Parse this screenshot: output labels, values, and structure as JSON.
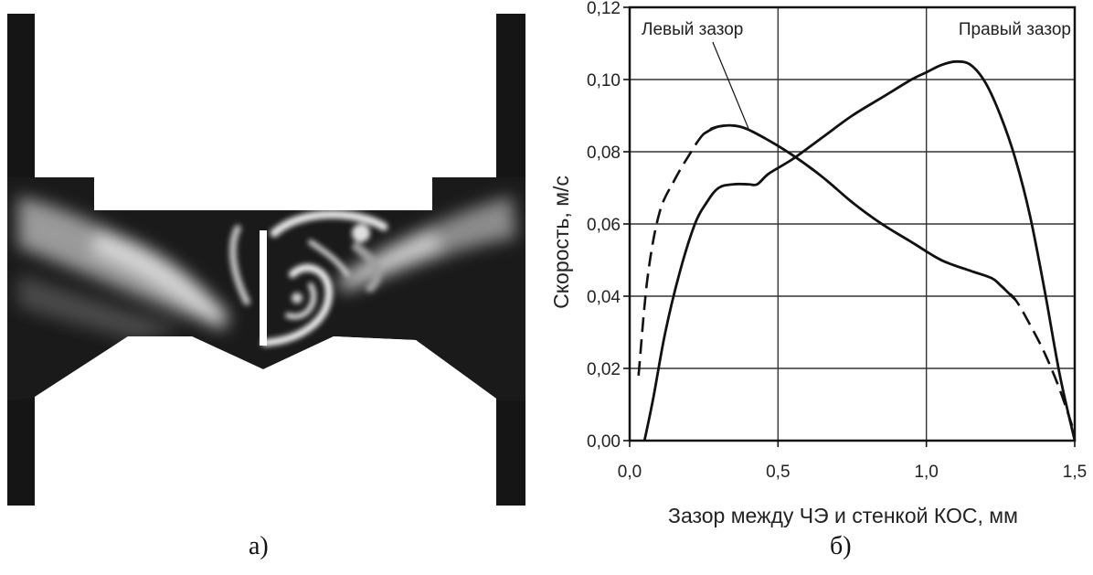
{
  "captions": {
    "left": "а)",
    "right": "б)"
  },
  "chart_data": {
    "type": "line",
    "xlabel": "Зазор между ЧЭ и стенкой КОС, мм",
    "ylabel": "Скорость, м/с",
    "xlim": [
      0.0,
      1.5
    ],
    "ylim": [
      0.0,
      0.12
    ],
    "xticks": [
      "0,0",
      "0,5",
      "1,0",
      "1,5"
    ],
    "yticks": [
      "0,00",
      "0,02",
      "0,04",
      "0,06",
      "0,08",
      "0,10",
      "0,12"
    ],
    "grid": true,
    "series": [
      {
        "name": "Левый зазор",
        "dashed_segment": "x < 0.37",
        "x": [
          0.03,
          0.06,
          0.1,
          0.15,
          0.2,
          0.25,
          0.3,
          0.37,
          0.45,
          0.55,
          0.65,
          0.75,
          0.85,
          0.95,
          1.05,
          1.15,
          1.22,
          1.25,
          1.3,
          1.35,
          1.4,
          1.45,
          1.5
        ],
        "y": [
          0.018,
          0.045,
          0.063,
          0.072,
          0.079,
          0.085,
          0.087,
          0.087,
          0.084,
          0.079,
          0.073,
          0.066,
          0.06,
          0.055,
          0.05,
          0.047,
          0.045,
          0.043,
          0.039,
          0.032,
          0.024,
          0.014,
          0.002
        ]
      },
      {
        "name": "Правый зазор",
        "dashed_segment": "none",
        "x": [
          0.05,
          0.08,
          0.12,
          0.17,
          0.22,
          0.26,
          0.3,
          0.35,
          0.4,
          0.43,
          0.47,
          0.55,
          0.65,
          0.75,
          0.85,
          0.95,
          1.0,
          1.05,
          1.1,
          1.15,
          1.2,
          1.25,
          1.3,
          1.35,
          1.4,
          1.45,
          1.5
        ],
        "y": [
          0.0,
          0.012,
          0.03,
          0.047,
          0.06,
          0.066,
          0.07,
          0.071,
          0.071,
          0.071,
          0.074,
          0.078,
          0.084,
          0.09,
          0.095,
          0.1,
          0.102,
          0.104,
          0.105,
          0.104,
          0.099,
          0.09,
          0.078,
          0.062,
          0.041,
          0.018,
          0.0
        ]
      }
    ]
  }
}
